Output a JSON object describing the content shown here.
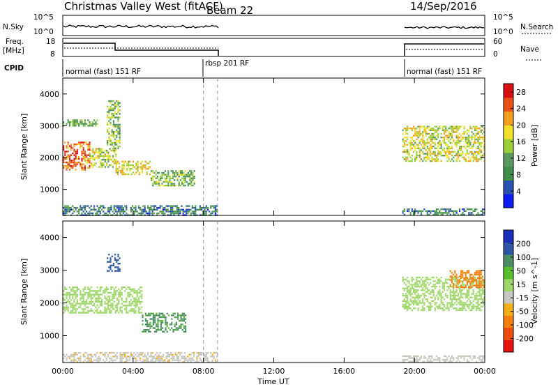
{
  "header": {
    "station": "Christmas Valley West (fitACF)",
    "beam": "Beam 22",
    "date": "14/Sep/2016"
  },
  "aux_panels": {
    "nsky": {
      "label": "N.Sky",
      "ticks": [
        "10^5",
        "10^0"
      ],
      "right_label": "N.Search",
      "right_ticks": [
        "10^5",
        "10^0"
      ]
    },
    "freq": {
      "label_line1": "Freq.",
      "label_line2": "[MHz]",
      "ticks": [
        "18",
        "8"
      ],
      "right_label": "Nave",
      "right_ticks": [
        "60",
        "0"
      ]
    },
    "cpid": {
      "label": "CPID",
      "segments": [
        "normal (fast) 151 RF",
        "rbsp 201 RF",
        "normal (fast) 151 RF"
      ]
    }
  },
  "colors": {
    "power": [
      "#0b1cf0",
      "#2a52b0",
      "#3f8f4a",
      "#5a9a5e",
      "#9ccf3a",
      "#f2e12a",
      "#f3a020",
      "#e85018",
      "#d80f0f"
    ],
    "velocity": [
      "#e81010",
      "#f04b10",
      "#f58010",
      "#f6b015",
      "#c8c8c0",
      "#9fd86a",
      "#58c030",
      "#4b8f62",
      "#2e56a6",
      "#1a2fb8"
    ]
  },
  "chart_data": [
    {
      "type": "heatmap",
      "title": "Christmas Valley West (fitACF) Beam 22 14/Sep/2016",
      "ylabel": "Slant Range [km]",
      "xlabel": "",
      "x_ticks": [
        "00:00",
        "04:00",
        "08:00",
        "12:00",
        "16:00",
        "20:00",
        "00:00"
      ],
      "xlim_hours": [
        0,
        24
      ],
      "y_ticks": [
        1000,
        2000,
        3000,
        4000
      ],
      "ylim_km": [
        180,
        4500
      ],
      "colorbar": {
        "label": "Power [dB]",
        "ticks": [
          4,
          8,
          12,
          16,
          20,
          24,
          28
        ],
        "range": [
          0,
          30
        ]
      },
      "regions": [
        {
          "t": [
            0,
            1.5
          ],
          "range_km": [
            1600,
            2500
          ],
          "power_db": 24
        },
        {
          "t": [
            1.5,
            3
          ],
          "range_km": [
            1700,
            2300
          ],
          "power_db": 16
        },
        {
          "t": [
            0,
            2
          ],
          "range_km": [
            3000,
            3200
          ],
          "power_db": 12
        },
        {
          "t": [
            2.5,
            3.2
          ],
          "range_km": [
            2300,
            3800
          ],
          "power_db": 14
        },
        {
          "t": [
            3,
            5
          ],
          "range_km": [
            1500,
            1900
          ],
          "power_db": 18
        },
        {
          "t": [
            5,
            7.5
          ],
          "range_km": [
            1100,
            1600
          ],
          "power_db": 13
        },
        {
          "t": [
            0,
            8.8
          ],
          "range_km": [
            200,
            500
          ],
          "power_db": 8
        },
        {
          "t": [
            19.3,
            24
          ],
          "range_km": [
            1900,
            3000
          ],
          "power_db": 17
        },
        {
          "t": [
            19.3,
            24
          ],
          "range_km": [
            200,
            400
          ],
          "power_db": 8
        }
      ]
    },
    {
      "type": "heatmap",
      "ylabel": "Slant Range [km]",
      "xlabel": "Time UT",
      "x_ticks": [
        "00:00",
        "04:00",
        "08:00",
        "12:00",
        "16:00",
        "20:00",
        "00:00"
      ],
      "xlim_hours": [
        0,
        24
      ],
      "y_ticks": [
        1000,
        2000,
        3000,
        4000
      ],
      "ylim_km": [
        180,
        4500
      ],
      "colorbar": {
        "label": "Velocity [m s^-1]",
        "ticks": [
          -200,
          -100,
          -50,
          -15,
          15,
          50,
          100,
          200
        ]
      },
      "regions": [
        {
          "t": [
            0,
            4.5
          ],
          "range_km": [
            1700,
            2500
          ],
          "velocity": 0
        },
        {
          "t": [
            4.5,
            7
          ],
          "range_km": [
            1100,
            1700
          ],
          "velocity": 60
        },
        {
          "t": [
            2.5,
            3.2
          ],
          "range_km": [
            3000,
            3500
          ],
          "velocity": 120
        },
        {
          "t": [
            0,
            8.8
          ],
          "range_km": [
            200,
            500
          ],
          "velocity": -40
        },
        {
          "t": [
            19.3,
            24
          ],
          "range_km": [
            1800,
            2800
          ],
          "velocity": 0
        },
        {
          "t": [
            22,
            24
          ],
          "range_km": [
            2500,
            3000
          ],
          "velocity": -150
        },
        {
          "t": [
            19.3,
            24
          ],
          "range_km": [
            200,
            400
          ],
          "velocity": -30
        }
      ]
    }
  ]
}
